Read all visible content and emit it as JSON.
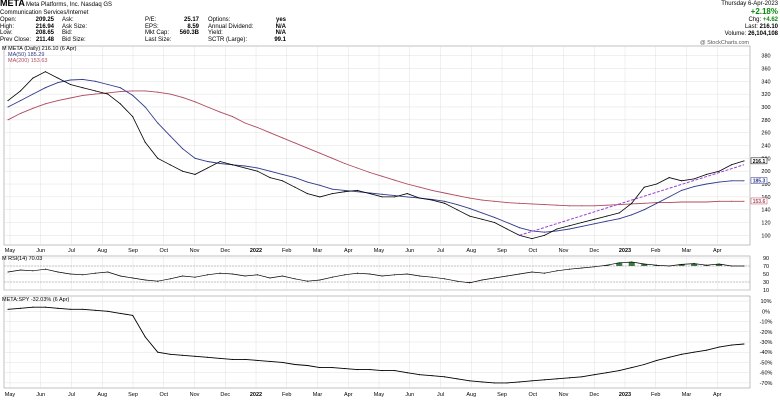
{
  "header": {
    "symbol": "META",
    "company": "Meta Platforms, Inc.  Nasdaq GS",
    "sector": "Communication Services/Internet",
    "stats": [
      {
        "label": "Open:",
        "value": "209.25"
      },
      {
        "label": "High:",
        "value": "216.94"
      },
      {
        "label": "Low:",
        "value": "208.65"
      },
      {
        "label": "Prev Close:",
        "value": "211.48"
      }
    ],
    "stats2": [
      {
        "label": "Ask:",
        "value": ""
      },
      {
        "label": "Ask Size:",
        "value": ""
      },
      {
        "label": "Bid:",
        "value": ""
      },
      {
        "label": "Bid Size:",
        "value": ""
      }
    ],
    "stats3": [
      {
        "label": "P/E:",
        "value": "25.17"
      },
      {
        "label": "EPS:",
        "value": "8.59"
      },
      {
        "label": "Mkt Cap:",
        "value": "560.3B"
      },
      {
        "label": "Last Size:",
        "value": ""
      }
    ],
    "stats4": [
      {
        "label": "Options:",
        "value": "yes"
      },
      {
        "label": "Annual Dividend:",
        "value": "N/A"
      },
      {
        "label": "Yield:",
        "value": "N/A"
      },
      {
        "label": "SCTR (Large):",
        "value": "99.1"
      }
    ],
    "date": "Thursday  6-Apr-2023",
    "chg_pct": "+2.18%",
    "chg": "+4.62",
    "last": "216.10",
    "volume": "26,104,108",
    "chg_label": "Chg:",
    "last_label": "Last:",
    "volume_label": "Volume:",
    "watermark": "@ StockCharts.com"
  },
  "legends": {
    "price": "M META (Daily) 216.10 (6 Apr)",
    "ma50": "MA(50) 185.29",
    "ma200": "MA(200) 153.63",
    "rsi": "M RSI(14) 70.03",
    "rel": "META:SPY -32.03% (6 Apr)"
  },
  "colors": {
    "price": "#000000",
    "ma50": "#303a8c",
    "ma200": "#b04b5e",
    "trend": "#9a3fd6",
    "grid": "#d8d8d8",
    "rsi_over": "#3d7a3d",
    "rsi_under": "#b04b5e"
  },
  "chart_data": [
    {
      "type": "line",
      "title": "META (Daily)",
      "x_labels": [
        "May",
        "Jun",
        "Jul",
        "Aug",
        "Sep",
        "Oct",
        "Nov",
        "Dec",
        "2022",
        "Feb",
        "Mar",
        "Apr",
        "May",
        "Jun",
        "Jul",
        "Aug",
        "Sep",
        "Oct",
        "Nov",
        "Dec",
        "2023",
        "Feb",
        "Mar",
        "Apr"
      ],
      "yticks": [
        100,
        120,
        140,
        160,
        180,
        200,
        220,
        240,
        260,
        280,
        300,
        320,
        340,
        360,
        380
      ],
      "ylim": [
        85,
        395
      ],
      "series": [
        {
          "name": "META",
          "values": [
            310,
            325,
            345,
            355,
            345,
            335,
            330,
            325,
            320,
            305,
            285,
            245,
            220,
            210,
            200,
            195,
            205,
            215,
            210,
            205,
            200,
            190,
            185,
            175,
            165,
            160,
            165,
            168,
            170,
            165,
            160,
            160,
            165,
            158,
            155,
            150,
            140,
            130,
            125,
            120,
            110,
            100,
            95,
            100,
            110,
            115,
            120,
            125,
            130,
            135,
            150,
            175,
            180,
            190,
            185,
            188,
            195,
            200,
            210,
            216
          ]
        },
        {
          "name": "MA(50)",
          "values": [
            300,
            310,
            320,
            330,
            338,
            342,
            343,
            340,
            335,
            330,
            318,
            300,
            275,
            255,
            235,
            220,
            215,
            212,
            210,
            208,
            205,
            200,
            195,
            190,
            183,
            178,
            172,
            170,
            168,
            166,
            164,
            162,
            160,
            158,
            156,
            153,
            148,
            142,
            135,
            128,
            120,
            112,
            107,
            105,
            107,
            110,
            114,
            118,
            122,
            126,
            132,
            140,
            150,
            160,
            170,
            176,
            180,
            183,
            185,
            185
          ]
        },
        {
          "name": "MA(200)",
          "values": [
            280,
            290,
            298,
            305,
            310,
            314,
            318,
            320,
            322,
            324,
            325,
            325,
            323,
            320,
            315,
            308,
            300,
            292,
            285,
            275,
            268,
            260,
            252,
            244,
            236,
            228,
            220,
            212,
            205,
            198,
            192,
            186,
            180,
            175,
            170,
            166,
            162,
            158,
            155,
            153,
            151,
            150,
            149,
            148,
            147,
            146,
            146,
            146,
            147,
            148,
            149,
            150,
            151,
            151,
            152,
            152,
            152,
            153,
            153,
            153
          ]
        }
      ],
      "trendline": {
        "from": [
          100
        ],
        "to": [
          210
        ]
      },
      "price_flags": [
        {
          "label": "216.1"
        },
        {
          "label": "185.3"
        },
        {
          "label": "153.6"
        }
      ]
    },
    {
      "type": "line",
      "title": "RSI(14)",
      "yticks": [
        10,
        30,
        50,
        70,
        90
      ],
      "ylim": [
        10,
        95
      ],
      "series": [
        {
          "name": "RSI",
          "values": [
            55,
            60,
            58,
            62,
            55,
            50,
            48,
            52,
            55,
            45,
            40,
            35,
            32,
            38,
            45,
            42,
            48,
            52,
            50,
            45,
            48,
            40,
            45,
            38,
            32,
            35,
            42,
            48,
            52,
            50,
            45,
            48,
            50,
            45,
            42,
            38,
            32,
            28,
            35,
            40,
            45,
            50,
            55,
            52,
            58,
            62,
            65,
            68,
            72,
            78,
            80,
            75,
            72,
            70,
            74,
            76,
            72,
            75,
            70,
            70
          ]
        }
      ]
    },
    {
      "type": "line",
      "title": "META:SPY",
      "yticks": [
        "10%",
        "0%",
        "-10%",
        "-20%",
        "-30%",
        "-40%",
        "-50%",
        "-60%",
        "-70%"
      ],
      "ylim": [
        -75,
        15
      ],
      "series": [
        {
          "name": "META:SPY",
          "values": [
            2,
            3,
            4,
            4,
            3,
            2,
            2,
            1,
            0,
            -2,
            -4,
            -25,
            -40,
            -42,
            -43,
            -44,
            -45,
            -46,
            -47,
            -47,
            -48,
            -49,
            -50,
            -52,
            -53,
            -55,
            -55,
            -56,
            -57,
            -57,
            -58,
            -58,
            -60,
            -62,
            -63,
            -64,
            -66,
            -68,
            -69,
            -70,
            -70,
            -69,
            -68,
            -67,
            -66,
            -65,
            -64,
            -62,
            -60,
            -58,
            -55,
            -52,
            -48,
            -45,
            -42,
            -40,
            -38,
            -35,
            -33,
            -32
          ]
        }
      ]
    }
  ]
}
